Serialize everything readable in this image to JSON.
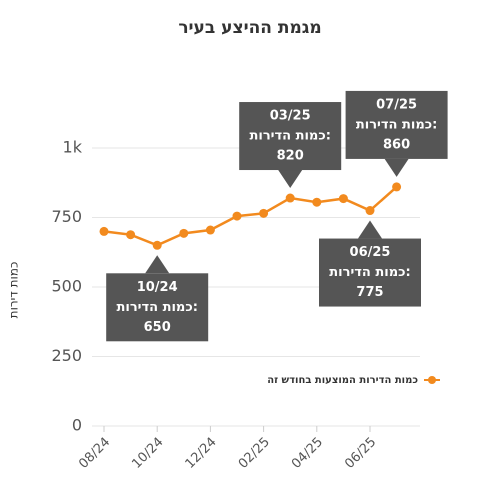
{
  "chart_data": {
    "type": "line",
    "title": "מגמת ההיצע בעיר",
    "y_label": "כמות דירות",
    "categories": [
      "08/24",
      null,
      "10/24",
      null,
      "12/24",
      null,
      "02/25",
      null,
      "04/25",
      null,
      "06/25",
      null
    ],
    "series": [
      {
        "name": "כמות הדירות המוצעות בחודש זה",
        "color": "#f28a1e",
        "values": [
          700,
          688,
          650,
          693,
          705,
          755,
          765,
          820,
          805,
          818,
          775,
          860
        ]
      }
    ],
    "ylim": [
      0,
      1000
    ],
    "yticks": [
      0,
      250,
      500,
      750,
      {
        "value": 1000,
        "label": "1k"
      }
    ],
    "grid": true,
    "legend": "right",
    "annotations": [
      {
        "index": 2,
        "date": "10/24",
        "text": "כמות הדירות:",
        "side": "below"
      },
      {
        "index": 7,
        "date": "03/25",
        "text": "כמות הדירות:",
        "side": "above"
      },
      {
        "index": 10,
        "date": "06/25",
        "text": "כמות הדירות:",
        "side": "below"
      },
      {
        "index": 11,
        "date": "07/25",
        "text": "כמות הדירות:",
        "side": "above"
      }
    ]
  }
}
